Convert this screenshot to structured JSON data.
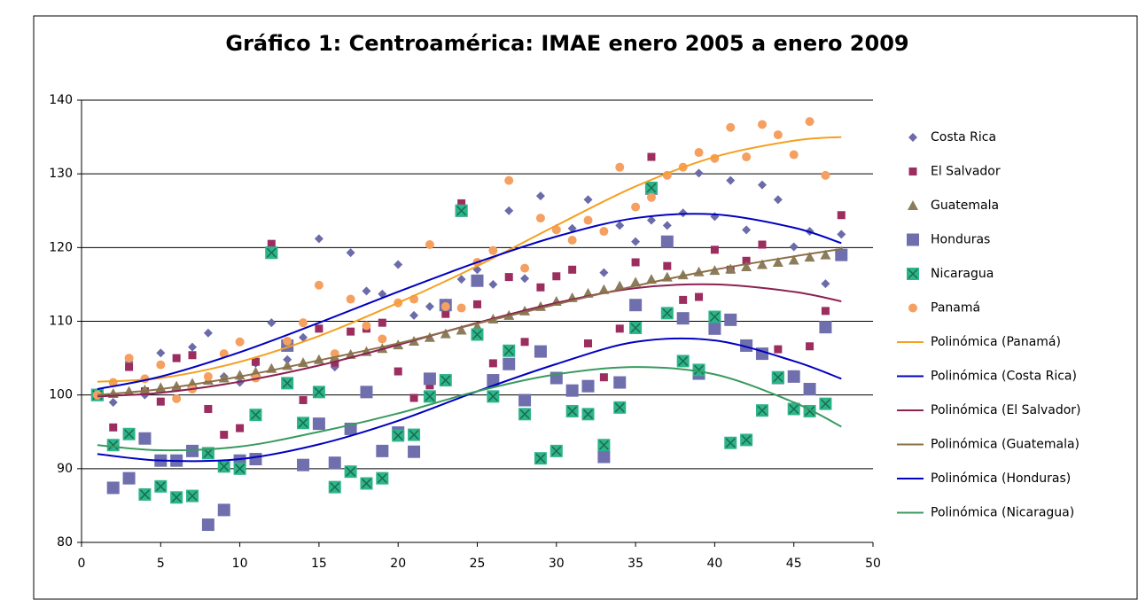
{
  "chart_data": {
    "type": "scatter",
    "title": "Gráfico 1: Centroamérica: IMAE enero 2005 a enero 2009",
    "x": [
      1,
      2,
      3,
      4,
      5,
      6,
      7,
      8,
      9,
      10,
      11,
      12,
      13,
      14,
      15,
      16,
      17,
      18,
      19,
      20,
      21,
      22,
      23,
      24,
      25,
      26,
      27,
      28,
      29,
      30,
      31,
      32,
      33,
      34,
      35,
      36,
      37,
      38,
      39,
      40,
      41,
      42,
      43,
      44,
      45,
      46,
      47,
      48
    ],
    "xlim": [
      0,
      50
    ],
    "xticks": [
      0,
      5,
      10,
      15,
      20,
      25,
      30,
      35,
      40,
      45,
      50
    ],
    "ylim": [
      80,
      140
    ],
    "yticks": [
      80,
      90,
      100,
      110,
      120,
      130,
      140
    ],
    "grid": true,
    "legend": "right",
    "series": [
      {
        "name": "Costa Rica",
        "color": "#6b6baa",
        "marker": "diamond",
        "values": [
          100,
          99,
          104.5,
          100,
          105.7,
          101,
          106.5,
          108.4,
          102.5,
          101.7,
          104.3,
          109.8,
          104.8,
          107.8,
          121.2,
          103.8,
          119.3,
          114.1,
          113.7,
          117.7,
          110.8,
          112,
          112.5,
          115.7,
          117,
          115,
          125,
          115.8,
          127,
          122.6,
          122.6,
          126.5,
          116.6,
          123,
          120.8,
          123.7,
          123,
          124.7,
          130.1,
          124.2,
          129.1,
          122.4,
          128.5,
          126.5,
          120.1,
          122.2,
          115.1,
          121.8
        ]
      },
      {
        "name": "El Salvador",
        "color": "#9b2d5f",
        "marker": "square",
        "values": [
          100,
          95.6,
          103.8,
          100.5,
          99.1,
          105,
          105.4,
          98.1,
          94.6,
          95.5,
          104.5,
          120.5,
          107,
          99.3,
          109,
          104.4,
          108.6,
          109,
          109.8,
          103.2,
          99.6,
          101.3,
          111,
          126,
          112.3,
          104.3,
          116,
          107.2,
          114.6,
          116.1,
          117,
          107,
          102.4,
          109,
          118,
          132.3,
          117.5,
          112.9,
          113.3,
          119.7,
          117,
          118.2,
          120.4,
          106.2,
          102.8,
          106.6,
          111.4,
          124.4
        ]
      },
      {
        "name": "Guatemala",
        "color": "#8b7d5c",
        "marker": "triangle",
        "values": [
          100,
          100.2,
          100.5,
          100.7,
          101,
          101.2,
          101.6,
          102,
          102.3,
          102.7,
          103.1,
          103.6,
          104,
          104.4,
          104.8,
          105.1,
          105.5,
          105.9,
          106.3,
          106.8,
          107.3,
          107.8,
          108.3,
          108.8,
          109.3,
          110.3,
          110.8,
          111.4,
          112,
          112.7,
          113.2,
          113.8,
          114.3,
          114.8,
          115.3,
          115.7,
          116,
          116.3,
          116.7,
          116.9,
          117.1,
          117.4,
          117.7,
          118,
          118.3,
          118.7,
          119,
          119.5
        ]
      },
      {
        "name": "Honduras",
        "color": "#6f6fae",
        "marker": "bigsquare",
        "values": [
          100,
          87.4,
          88.7,
          94.1,
          91.1,
          91.1,
          92.4,
          82.4,
          84.4,
          91.1,
          91.3,
          119.3,
          106.7,
          90.5,
          96.1,
          90.8,
          95.4,
          100.4,
          92.4,
          94.9,
          92.3,
          102.2,
          112.2,
          125,
          115.5,
          102,
          104.2,
          99.3,
          105.9,
          102.3,
          100.6,
          101.2,
          91.6,
          101.7,
          112.2,
          128,
          120.8,
          110.4,
          102.9,
          109,
          110.2,
          106.7,
          105.6,
          102.3,
          102.5,
          100.8,
          109.2,
          119
        ]
      },
      {
        "name": "Nicaragua",
        "color": "#2db58a",
        "marker": "xsquare",
        "values": [
          100,
          93.2,
          94.7,
          86.5,
          87.6,
          86.1,
          86.3,
          92.1,
          90.3,
          90,
          97.3,
          119.3,
          101.6,
          96.2,
          100.4,
          87.5,
          89.6,
          88,
          88.7,
          94.5,
          94.6,
          99.8,
          102,
          125,
          108.2,
          99.8,
          106,
          97.4,
          91.4,
          92.4,
          97.8,
          97.4,
          93.2,
          98.3,
          109.1,
          128.1,
          111.1,
          104.6,
          103.4,
          110.6,
          93.5,
          93.9,
          97.9,
          102.4,
          98.1,
          97.8,
          98.8,
          null
        ]
      },
      {
        "name": "Panamá",
        "color": "#f5a060",
        "marker": "circle",
        "values": [
          100,
          101.7,
          105,
          102.2,
          104.1,
          99.5,
          100.8,
          102.5,
          105.6,
          107.2,
          102.3,
          null,
          107.3,
          109.8,
          114.9,
          105.6,
          113,
          109.4,
          107.6,
          112.5,
          113,
          120.4,
          112,
          111.8,
          118,
          119.6,
          129.1,
          117.2,
          124,
          122.4,
          121,
          123.7,
          122.2,
          130.9,
          125.5,
          126.8,
          129.8,
          130.9,
          132.9,
          132.1,
          136.3,
          132.3,
          136.7,
          135.3,
          132.6,
          137.1,
          129.8,
          null
        ]
      },
      {
        "name": "Polinómica (Panamá)",
        "color": "#f5a020",
        "type": "line",
        "x": [
          1,
          5,
          10,
          15,
          20,
          25,
          30,
          35,
          40,
          45,
          48
        ],
        "values": [
          101.8,
          102.3,
          104.5,
          108,
          112.5,
          117.5,
          123,
          128.3,
          132.3,
          134.5,
          135
        ]
      },
      {
        "name": "Polinómica (Costa Rica)",
        "color": "#0000c0",
        "type": "line",
        "x": [
          1,
          5,
          10,
          15,
          20,
          25,
          30,
          35,
          40,
          45,
          48
        ],
        "values": [
          100.8,
          102.5,
          105.8,
          109.8,
          114,
          118,
          121.5,
          124,
          124.5,
          122.7,
          120.6
        ]
      },
      {
        "name": "Polinómica (El Salvador)",
        "color": "#8b2252",
        "type": "line",
        "x": [
          1,
          5,
          10,
          15,
          20,
          25,
          30,
          35,
          40,
          45,
          48
        ],
        "values": [
          99.8,
          100.3,
          101.8,
          104,
          106.8,
          109.8,
          112.5,
          114.5,
          115,
          114,
          112.7
        ]
      },
      {
        "name": "Polinómica (Guatemala)",
        "color": "#8b6f47",
        "type": "line",
        "x": [
          1,
          5,
          10,
          15,
          20,
          25,
          30,
          35,
          40,
          45,
          48
        ],
        "values": [
          100,
          100.8,
          102.5,
          104.7,
          107,
          109.7,
          112.3,
          114.8,
          117,
          118.8,
          119.8
        ]
      },
      {
        "name": "Polinómica (Honduras)",
        "color": "#0000c0",
        "type": "line",
        "x": [
          1,
          5,
          10,
          15,
          20,
          25,
          30,
          35,
          40,
          45,
          48
        ],
        "values": [
          92,
          91.1,
          91.3,
          93.3,
          96.5,
          100.5,
          104.2,
          107.2,
          107.4,
          104.6,
          102.2
        ]
      },
      {
        "name": "Polinómica (Nicaragua)",
        "color": "#3a9a60",
        "type": "line",
        "x": [
          1,
          5,
          10,
          15,
          20,
          25,
          30,
          35,
          40,
          45,
          48
        ],
        "values": [
          93.2,
          92.5,
          93,
          95,
          97.5,
          100.5,
          102.8,
          103.8,
          102.8,
          99,
          95.7
        ]
      }
    ]
  }
}
